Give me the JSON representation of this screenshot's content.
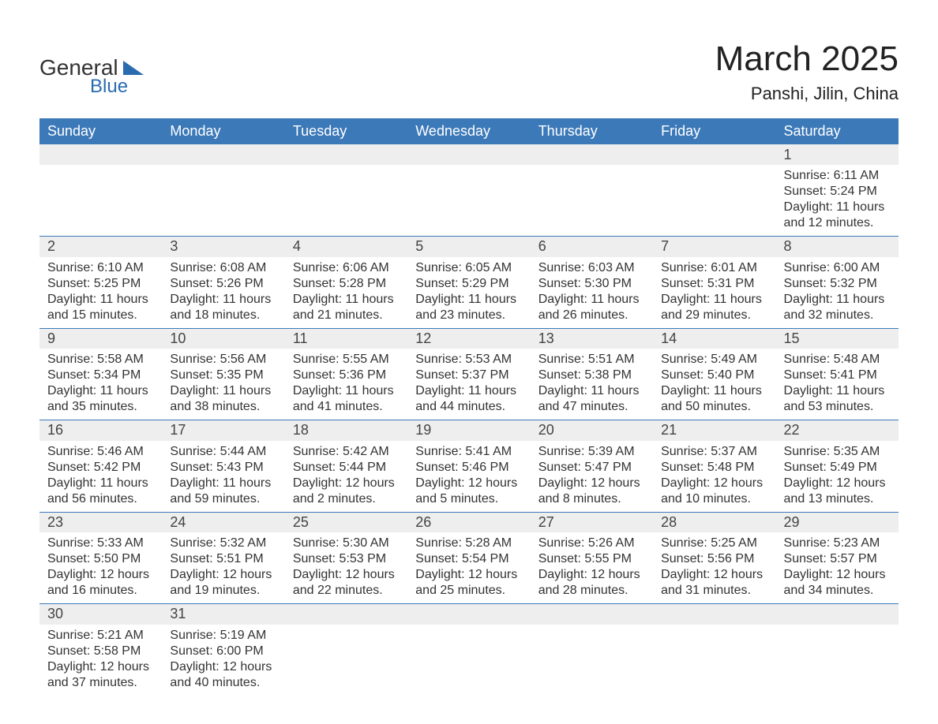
{
  "brand": {
    "name1": "General",
    "name2": "Blue",
    "accent_color": "#2a6bb0"
  },
  "title": "March 2025",
  "location": "Panshi, Jilin, China",
  "header_bg": "#3c79b8",
  "row_divider_color": "#3c79b8",
  "alt_row_bg": "#eeeeee",
  "text_color": "#333333",
  "font_family": "Arial",
  "title_fontsize": 44,
  "location_fontsize": 22,
  "header_fontsize": 18,
  "daynum_fontsize": 18,
  "detail_fontsize": 16,
  "days_of_week": [
    "Sunday",
    "Monday",
    "Tuesday",
    "Wednesday",
    "Thursday",
    "Friday",
    "Saturday"
  ],
  "weeks": [
    [
      null,
      null,
      null,
      null,
      null,
      null,
      {
        "n": "1",
        "sr": "Sunrise: 6:11 AM",
        "ss": "Sunset: 5:24 PM",
        "d1": "Daylight: 11 hours",
        "d2": "and 12 minutes."
      }
    ],
    [
      {
        "n": "2",
        "sr": "Sunrise: 6:10 AM",
        "ss": "Sunset: 5:25 PM",
        "d1": "Daylight: 11 hours",
        "d2": "and 15 minutes."
      },
      {
        "n": "3",
        "sr": "Sunrise: 6:08 AM",
        "ss": "Sunset: 5:26 PM",
        "d1": "Daylight: 11 hours",
        "d2": "and 18 minutes."
      },
      {
        "n": "4",
        "sr": "Sunrise: 6:06 AM",
        "ss": "Sunset: 5:28 PM",
        "d1": "Daylight: 11 hours",
        "d2": "and 21 minutes."
      },
      {
        "n": "5",
        "sr": "Sunrise: 6:05 AM",
        "ss": "Sunset: 5:29 PM",
        "d1": "Daylight: 11 hours",
        "d2": "and 23 minutes."
      },
      {
        "n": "6",
        "sr": "Sunrise: 6:03 AM",
        "ss": "Sunset: 5:30 PM",
        "d1": "Daylight: 11 hours",
        "d2": "and 26 minutes."
      },
      {
        "n": "7",
        "sr": "Sunrise: 6:01 AM",
        "ss": "Sunset: 5:31 PM",
        "d1": "Daylight: 11 hours",
        "d2": "and 29 minutes."
      },
      {
        "n": "8",
        "sr": "Sunrise: 6:00 AM",
        "ss": "Sunset: 5:32 PM",
        "d1": "Daylight: 11 hours",
        "d2": "and 32 minutes."
      }
    ],
    [
      {
        "n": "9",
        "sr": "Sunrise: 5:58 AM",
        "ss": "Sunset: 5:34 PM",
        "d1": "Daylight: 11 hours",
        "d2": "and 35 minutes."
      },
      {
        "n": "10",
        "sr": "Sunrise: 5:56 AM",
        "ss": "Sunset: 5:35 PM",
        "d1": "Daylight: 11 hours",
        "d2": "and 38 minutes."
      },
      {
        "n": "11",
        "sr": "Sunrise: 5:55 AM",
        "ss": "Sunset: 5:36 PM",
        "d1": "Daylight: 11 hours",
        "d2": "and 41 minutes."
      },
      {
        "n": "12",
        "sr": "Sunrise: 5:53 AM",
        "ss": "Sunset: 5:37 PM",
        "d1": "Daylight: 11 hours",
        "d2": "and 44 minutes."
      },
      {
        "n": "13",
        "sr": "Sunrise: 5:51 AM",
        "ss": "Sunset: 5:38 PM",
        "d1": "Daylight: 11 hours",
        "d2": "and 47 minutes."
      },
      {
        "n": "14",
        "sr": "Sunrise: 5:49 AM",
        "ss": "Sunset: 5:40 PM",
        "d1": "Daylight: 11 hours",
        "d2": "and 50 minutes."
      },
      {
        "n": "15",
        "sr": "Sunrise: 5:48 AM",
        "ss": "Sunset: 5:41 PM",
        "d1": "Daylight: 11 hours",
        "d2": "and 53 minutes."
      }
    ],
    [
      {
        "n": "16",
        "sr": "Sunrise: 5:46 AM",
        "ss": "Sunset: 5:42 PM",
        "d1": "Daylight: 11 hours",
        "d2": "and 56 minutes."
      },
      {
        "n": "17",
        "sr": "Sunrise: 5:44 AM",
        "ss": "Sunset: 5:43 PM",
        "d1": "Daylight: 11 hours",
        "d2": "and 59 minutes."
      },
      {
        "n": "18",
        "sr": "Sunrise: 5:42 AM",
        "ss": "Sunset: 5:44 PM",
        "d1": "Daylight: 12 hours",
        "d2": "and 2 minutes."
      },
      {
        "n": "19",
        "sr": "Sunrise: 5:41 AM",
        "ss": "Sunset: 5:46 PM",
        "d1": "Daylight: 12 hours",
        "d2": "and 5 minutes."
      },
      {
        "n": "20",
        "sr": "Sunrise: 5:39 AM",
        "ss": "Sunset: 5:47 PM",
        "d1": "Daylight: 12 hours",
        "d2": "and 8 minutes."
      },
      {
        "n": "21",
        "sr": "Sunrise: 5:37 AM",
        "ss": "Sunset: 5:48 PM",
        "d1": "Daylight: 12 hours",
        "d2": "and 10 minutes."
      },
      {
        "n": "22",
        "sr": "Sunrise: 5:35 AM",
        "ss": "Sunset: 5:49 PM",
        "d1": "Daylight: 12 hours",
        "d2": "and 13 minutes."
      }
    ],
    [
      {
        "n": "23",
        "sr": "Sunrise: 5:33 AM",
        "ss": "Sunset: 5:50 PM",
        "d1": "Daylight: 12 hours",
        "d2": "and 16 minutes."
      },
      {
        "n": "24",
        "sr": "Sunrise: 5:32 AM",
        "ss": "Sunset: 5:51 PM",
        "d1": "Daylight: 12 hours",
        "d2": "and 19 minutes."
      },
      {
        "n": "25",
        "sr": "Sunrise: 5:30 AM",
        "ss": "Sunset: 5:53 PM",
        "d1": "Daylight: 12 hours",
        "d2": "and 22 minutes."
      },
      {
        "n": "26",
        "sr": "Sunrise: 5:28 AM",
        "ss": "Sunset: 5:54 PM",
        "d1": "Daylight: 12 hours",
        "d2": "and 25 minutes."
      },
      {
        "n": "27",
        "sr": "Sunrise: 5:26 AM",
        "ss": "Sunset: 5:55 PM",
        "d1": "Daylight: 12 hours",
        "d2": "and 28 minutes."
      },
      {
        "n": "28",
        "sr": "Sunrise: 5:25 AM",
        "ss": "Sunset: 5:56 PM",
        "d1": "Daylight: 12 hours",
        "d2": "and 31 minutes."
      },
      {
        "n": "29",
        "sr": "Sunrise: 5:23 AM",
        "ss": "Sunset: 5:57 PM",
        "d1": "Daylight: 12 hours",
        "d2": "and 34 minutes."
      }
    ],
    [
      {
        "n": "30",
        "sr": "Sunrise: 5:21 AM",
        "ss": "Sunset: 5:58 PM",
        "d1": "Daylight: 12 hours",
        "d2": "and 37 minutes."
      },
      {
        "n": "31",
        "sr": "Sunrise: 5:19 AM",
        "ss": "Sunset: 6:00 PM",
        "d1": "Daylight: 12 hours",
        "d2": "and 40 minutes."
      },
      null,
      null,
      null,
      null,
      null
    ]
  ]
}
